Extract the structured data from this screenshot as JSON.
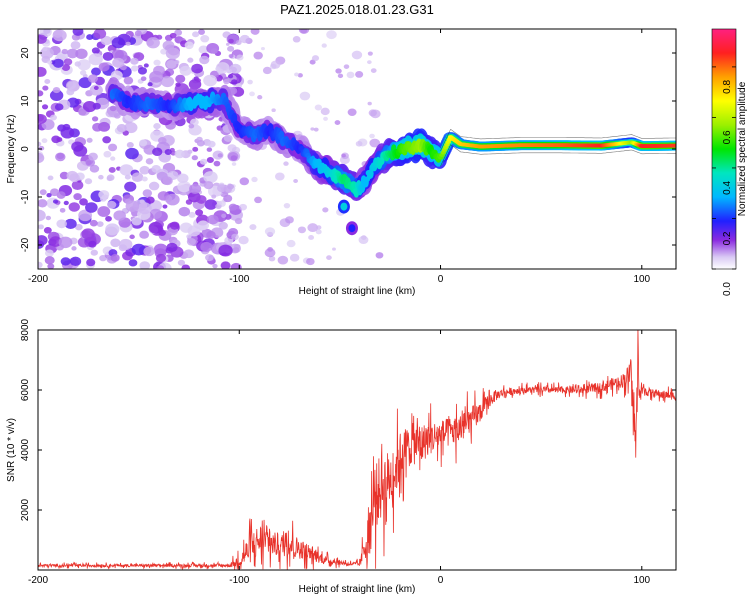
{
  "window": {
    "title": "PAZ1.2025.018.01.23.G31"
  },
  "colors": {
    "snr_line": "#e8322a",
    "ridge_core": "#ff2a2a",
    "background": "#ffffff"
  },
  "chart_data": [
    {
      "type": "heatmap",
      "title": "PAZ1.2025.018.01.23.G31",
      "xlabel": "Height of straight line (km)",
      "ylabel": "Frequency (Hz)",
      "xlim": [
        -200,
        117
      ],
      "ylim": [
        -25,
        25
      ],
      "xticks": [
        -200,
        -100,
        0,
        100
      ],
      "xtick_labels": [
        "-200",
        "-100",
        "0",
        "100"
      ],
      "yticks": [
        -20,
        -10,
        0,
        10,
        20
      ],
      "ytick_labels": [
        "-20",
        "-10",
        "0",
        "10",
        "20"
      ],
      "colorbar": {
        "label": "Normalized spectral amplitude",
        "range": [
          0,
          0.95
        ],
        "ticks": [
          0.0,
          0.2,
          0.4,
          0.6,
          0.8
        ],
        "tick_labels": [
          "0.0",
          "0.2",
          "0.4",
          "0.6",
          "0.8"
        ],
        "colormap": "rainbow"
      },
      "ridge": {
        "x": [
          -163,
          -155,
          -145,
          -135,
          -125,
          -115,
          -108,
          -100,
          -92,
          -85,
          -78,
          -70,
          -62,
          -55,
          -48,
          -42,
          -38,
          -32,
          -25,
          -18,
          -10,
          -5,
          0,
          5,
          10,
          20,
          40,
          60,
          80,
          95,
          100,
          117
        ],
        "y": [
          12,
          9.5,
          9.5,
          9,
          9.5,
          10,
          10.5,
          4,
          3,
          4,
          2,
          0,
          -3,
          -5,
          -6.5,
          -8.5,
          -7,
          -3,
          -1,
          0,
          1,
          -0.5,
          -2,
          2.5,
          1,
          0.5,
          0.8,
          0.8,
          0.7,
          1.4,
          0.6,
          0.7
        ],
        "amplitude": [
          0.25,
          0.2,
          0.25,
          0.2,
          0.3,
          0.3,
          0.25,
          0.2,
          0.25,
          0.2,
          0.25,
          0.2,
          0.3,
          0.35,
          0.45,
          0.4,
          0.3,
          0.35,
          0.45,
          0.55,
          0.6,
          0.5,
          0.55,
          0.7,
          0.75,
          0.8,
          0.82,
          0.85,
          0.9,
          0.6,
          0.9,
          0.88
        ]
      },
      "secondary_blobs": [
        {
          "x": -48,
          "y": -12,
          "amplitude": 0.35
        },
        {
          "x": -44,
          "y": -16.5,
          "amplitude": 0.2
        }
      ]
    },
    {
      "type": "line",
      "xlabel": "Height of straight line (km)",
      "ylabel": "SNR (10 * v/v)",
      "xlim": [
        -200,
        117
      ],
      "ylim": [
        0,
        8000
      ],
      "xticks": [
        -200,
        -100,
        0,
        100
      ],
      "xtick_labels": [
        "-200",
        "-100",
        "0",
        "100"
      ],
      "yticks": [
        2000,
        4000,
        6000,
        8000
      ],
      "ytick_labels": [
        "2000",
        "4000",
        "6000",
        "8000"
      ],
      "series": [
        {
          "x": [
            -200,
            -150,
            -105,
            -100,
            -95,
            -90,
            -85,
            -80,
            -75,
            -70,
            -65,
            -60,
            -55,
            -50,
            -45,
            -40,
            -35,
            -32,
            -29,
            -26,
            -23,
            -20,
            -15,
            -10,
            -5,
            0,
            5,
            10,
            15,
            20,
            25,
            30,
            40,
            50,
            60,
            70,
            80,
            90,
            94,
            96,
            97,
            98,
            99,
            100,
            105,
            110,
            117
          ],
          "y": [
            150,
            150,
            150,
            300,
            700,
            1000,
            900,
            800,
            900,
            700,
            600,
            400,
            300,
            250,
            200,
            200,
            1500,
            2500,
            2800,
            3000,
            3200,
            3800,
            4200,
            4200,
            4400,
            4500,
            4600,
            4700,
            5000,
            5300,
            5700,
            5900,
            6000,
            6000,
            6000,
            6000,
            6100,
            6300,
            6500,
            5500,
            4000,
            7000,
            5800,
            6000,
            5900,
            5850,
            5800
          ],
          "noise_amplitude": [
            80,
            80,
            100,
            400,
            900,
            1000,
            800,
            700,
            800,
            600,
            500,
            300,
            200,
            150,
            100,
            150,
            1800,
            2000,
            2000,
            1800,
            1500,
            1500,
            1300,
            1200,
            1000,
            900,
            900,
            900,
            800,
            600,
            400,
            250,
            200,
            200,
            200,
            250,
            300,
            400,
            700,
            1000,
            1200,
            1200,
            600,
            300,
            250,
            250,
            250
          ]
        }
      ]
    }
  ]
}
